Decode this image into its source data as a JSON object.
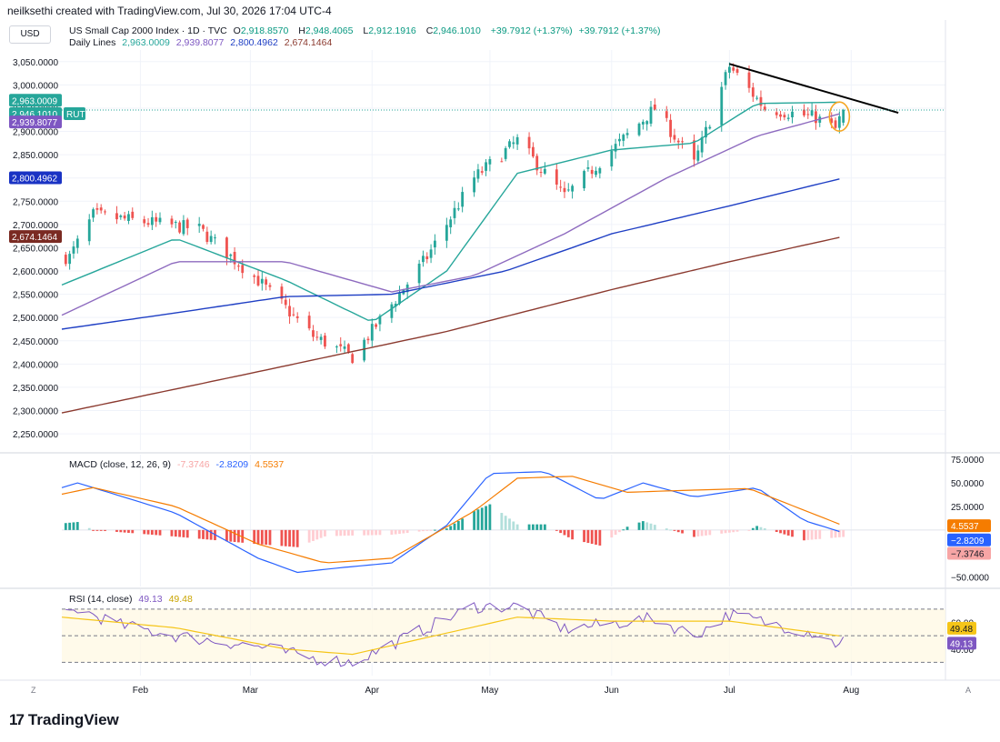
{
  "header": {
    "credit": "neilksethi created with TradingView.com, Jul 30, 2026 17:04 UTC-4",
    "currency": "USD",
    "symbol_title": "US Small Cap 2000 Index · 1D · TVC",
    "ohlc": {
      "o": "2,918.8570",
      "h": "2,948.4065",
      "l": "2,912.1916",
      "c": "2,946.1010",
      "chg": "+39.7912 (+1.37%)",
      "chg2": "+39.7912 (+1.37%)"
    },
    "daily_lines_label": "Daily Lines",
    "daily_lines_values": [
      "2,963.0009",
      "2,939.8077",
      "2,800.4962",
      "2,674.1464"
    ]
  },
  "price_axis": {
    "ticks": [
      "3,050.0000",
      "3,000.0000",
      "2,950.0000",
      "2,900.0000",
      "2,850.0000",
      "2,800.0000",
      "2,750.0000",
      "2,700.0000",
      "2,650.0000",
      "2,600.0000",
      "2,550.0000",
      "2,500.0000",
      "2,450.0000",
      "2,400.0000",
      "2,350.0000",
      "2,300.0000",
      "2,250.0000"
    ],
    "badges": [
      {
        "text": "2,963.0009",
        "color": "#26a69a"
      },
      {
        "text": "2,946.1010",
        "color": "#26a69a",
        "tag": "RUT"
      },
      {
        "text": "2,939.8077",
        "color": "#7e57c2"
      },
      {
        "text": "2,800.4962",
        "color": "#1a33c4"
      },
      {
        "text": "2,674.1464",
        "color": "#7a2a22"
      }
    ]
  },
  "macd_panel": {
    "label": "MACD (close, 12, 26, 9)",
    "values": [
      "-7.3746",
      "-2.8209",
      "4.5537"
    ],
    "axis_ticks": [
      "75.0000",
      "50.0000",
      "25.0000",
      "−25.0000",
      "−50.0000"
    ],
    "badges": [
      {
        "text": "4.5537",
        "color": "#f57c00"
      },
      {
        "text": "−2.8209",
        "color": "#2962ff"
      },
      {
        "text": "−7.3746",
        "color": "#f7a5a5",
        "textcolor": "#131722"
      }
    ]
  },
  "rsi_panel": {
    "label": "RSI (14, close)",
    "values": [
      "49.13",
      "49.48"
    ],
    "axis_ticks": [
      "60.00",
      "40.00"
    ],
    "badges": [
      {
        "text": "49.48",
        "color": "#f5c518",
        "textcolor": "#131722"
      },
      {
        "text": "49.13",
        "color": "#7e57c2"
      }
    ]
  },
  "time_axis": {
    "labels": [
      "Feb",
      "Mar",
      "Apr",
      "May",
      "Jun",
      "Jul",
      "Aug"
    ],
    "left_btn": "Z",
    "right_btn": "A"
  },
  "footer": {
    "logo_text": "TradingView"
  },
  "colors": {
    "up": "#26a69a",
    "down": "#ef5350",
    "ema20": "#26a69a",
    "sma50": "#8e6bbf",
    "sma100": "#1f3fc4",
    "sma200": "#8b3a2f",
    "macd": "#2962ff",
    "signal": "#f57c00",
    "rsi": "#7e57c2",
    "rsi_ma": "#f5c518",
    "trendline": "#000000",
    "circle": "#f5a623"
  },
  "chart_data": {
    "type": "candlestick",
    "title": "US Small Cap 2000 Index · 1D · TVC",
    "x_range": [
      "2026-01-12",
      "2026-08-25"
    ],
    "y_range": [
      2215,
      3075
    ],
    "key_candles": [
      {
        "date": "2026-01-14",
        "close": 2630
      },
      {
        "date": "2026-01-20",
        "close": 2720
      },
      {
        "date": "2026-02-16",
        "close": 2690
      },
      {
        "date": "2026-03-03",
        "close": 2580
      },
      {
        "date": "2026-03-17",
        "close": 2460
      },
      {
        "date": "2026-03-27",
        "close": 2415
      },
      {
        "date": "2026-04-15",
        "close": 2630
      },
      {
        "date": "2026-04-27",
        "close": 2800
      },
      {
        "date": "2026-05-08",
        "close": 2880
      },
      {
        "date": "2026-05-20",
        "close": 2760
      },
      {
        "date": "2026-06-12",
        "close": 2950
      },
      {
        "date": "2026-06-22",
        "close": 2830
      },
      {
        "date": "2026-07-01",
        "close": 3040
      },
      {
        "date": "2026-07-10",
        "close": 2950
      },
      {
        "date": "2026-07-23",
        "close": 2930
      },
      {
        "date": "2026-07-28",
        "close": 2905
      },
      {
        "date": "2026-07-30",
        "open": 2918.857,
        "high": 2948.4065,
        "low": 2912.1916,
        "close": 2946.101
      }
    ],
    "moving_averages": [
      {
        "name": "2,963.0009",
        "last": 2963.0009,
        "points": [
          [
            "2026-01-12",
            2570
          ],
          [
            "2026-02-10",
            2670
          ],
          [
            "2026-03-10",
            2580
          ],
          [
            "2026-04-01",
            2490
          ],
          [
            "2026-04-20",
            2600
          ],
          [
            "2026-05-08",
            2810
          ],
          [
            "2026-06-01",
            2860
          ],
          [
            "2026-06-22",
            2875
          ],
          [
            "2026-07-08",
            2960
          ],
          [
            "2026-07-30",
            2963
          ]
        ]
      },
      {
        "name": "2,939.8077",
        "last": 2939.8077,
        "points": [
          [
            "2026-01-12",
            2505
          ],
          [
            "2026-02-10",
            2620
          ],
          [
            "2026-03-10",
            2620
          ],
          [
            "2026-04-06",
            2555
          ],
          [
            "2026-04-27",
            2590
          ],
          [
            "2026-05-20",
            2680
          ],
          [
            "2026-06-15",
            2800
          ],
          [
            "2026-07-08",
            2890
          ],
          [
            "2026-07-30",
            2940
          ]
        ]
      },
      {
        "name": "2,800.4962",
        "last": 2800.4962,
        "points": [
          [
            "2026-01-12",
            2475
          ],
          [
            "2026-02-10",
            2510
          ],
          [
            "2026-03-10",
            2545
          ],
          [
            "2026-04-06",
            2550
          ],
          [
            "2026-05-05",
            2600
          ],
          [
            "2026-06-01",
            2680
          ],
          [
            "2026-07-01",
            2740
          ],
          [
            "2026-07-30",
            2800
          ]
        ]
      },
      {
        "name": "2,674.1464",
        "last": 2674.1464,
        "points": [
          [
            "2026-01-12",
            2295
          ],
          [
            "2026-03-01",
            2380
          ],
          [
            "2026-04-20",
            2470
          ],
          [
            "2026-06-01",
            2560
          ],
          [
            "2026-07-01",
            2620
          ],
          [
            "2026-07-30",
            2674
          ]
        ]
      }
    ],
    "trendline": [
      [
        "2026-07-01",
        3045
      ],
      [
        "2026-08-13",
        2940
      ]
    ],
    "macd": {
      "y_range": [
        -60,
        80
      ],
      "macd_points": [
        [
          "2026-01-12",
          45
        ],
        [
          "2026-01-16",
          50
        ],
        [
          "2026-01-27",
          36
        ],
        [
          "2026-02-10",
          18
        ],
        [
          "2026-03-03",
          -30
        ],
        [
          "2026-03-13",
          -45
        ],
        [
          "2026-03-24",
          -40
        ],
        [
          "2026-04-06",
          -35
        ],
        [
          "2026-04-20",
          5
        ],
        [
          "2026-05-01",
          60
        ],
        [
          "2026-05-15",
          62
        ],
        [
          "2026-05-29",
          32
        ],
        [
          "2026-06-09",
          50
        ],
        [
          "2026-06-22",
          35
        ],
        [
          "2026-07-08",
          45
        ],
        [
          "2026-07-20",
          10
        ],
        [
          "2026-07-30",
          -2.8209
        ]
      ],
      "signal_points": [
        [
          "2026-01-12",
          38
        ],
        [
          "2026-01-20",
          45
        ],
        [
          "2026-02-10",
          25
        ],
        [
          "2026-03-03",
          -15
        ],
        [
          "2026-03-20",
          -35
        ],
        [
          "2026-04-06",
          -30
        ],
        [
          "2026-04-27",
          20
        ],
        [
          "2026-05-08",
          55
        ],
        [
          "2026-05-22",
          57
        ],
        [
          "2026-06-05",
          40
        ],
        [
          "2026-06-19",
          42
        ],
        [
          "2026-07-06",
          44
        ],
        [
          "2026-07-30",
          4.5537
        ]
      ],
      "histogram_last": -7.3746
    },
    "rsi": {
      "y_range": [
        20,
        85
      ],
      "levels": [
        70,
        50,
        30
      ],
      "rsi_points": [
        [
          "2026-01-12",
          65
        ],
        [
          "2026-01-16",
          70
        ],
        [
          "2026-01-27",
          58
        ],
        [
          "2026-02-10",
          50
        ],
        [
          "2026-03-03",
          42
        ],
        [
          "2026-03-17",
          33
        ],
        [
          "2026-03-27",
          30
        ],
        [
          "2026-04-15",
          56
        ],
        [
          "2026-04-27",
          72
        ],
        [
          "2026-05-08",
          72
        ],
        [
          "2026-05-20",
          55
        ],
        [
          "2026-06-12",
          63
        ],
        [
          "2026-06-22",
          50
        ],
        [
          "2026-07-01",
          66
        ],
        [
          "2026-07-23",
          52
        ],
        [
          "2026-07-28",
          44
        ],
        [
          "2026-07-30",
          49.13
        ]
      ],
      "ma_points": [
        [
          "2026-01-12",
          64
        ],
        [
          "2026-02-10",
          56
        ],
        [
          "2026-03-10",
          40
        ],
        [
          "2026-03-27",
          36
        ],
        [
          "2026-04-20",
          52
        ],
        [
          "2026-05-08",
          64
        ],
        [
          "2026-06-01",
          61
        ],
        [
          "2026-07-01",
          61
        ],
        [
          "2026-07-30",
          49.48
        ]
      ]
    }
  }
}
